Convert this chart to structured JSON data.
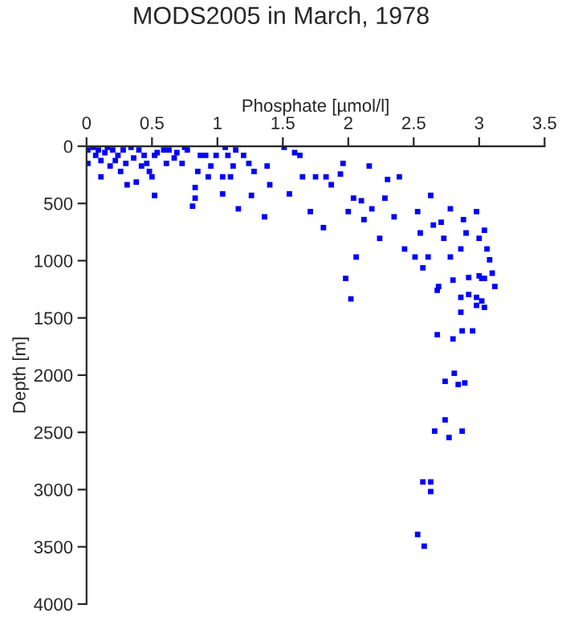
{
  "chart_data": {
    "type": "scatter",
    "title": "MODS2005 in March, 1978",
    "xlabel": "Phosphate [µmol/l]",
    "ylabel": "Depth [m]",
    "xlim": [
      0,
      3.5
    ],
    "xticks": [
      0,
      0.5,
      1,
      1.5,
      2,
      2.5,
      3,
      3.5
    ],
    "ylim": [
      4000,
      0
    ],
    "yticks": [
      0,
      500,
      1000,
      1500,
      2000,
      2500,
      3000,
      3500,
      4000
    ],
    "marker": "square",
    "grid": false,
    "legend": false,
    "series": [
      {
        "color": "#0000ff",
        "x": [
          0.01,
          0.01,
          0.05,
          0.07,
          0.09,
          0.11,
          0.11,
          0.14,
          0.16,
          0.18,
          0.2,
          0.22,
          0.24,
          0.26,
          0.28,
          0.3,
          0.31,
          0.34,
          0.36,
          0.38,
          0.4,
          0.42,
          0.44,
          0.46,
          0.48,
          0.5,
          0.52,
          0.54,
          0.52,
          0.59,
          0.61,
          0.63,
          0.67,
          0.69,
          0.73,
          0.75,
          0.77,
          0.81,
          0.83,
          0.83,
          0.85,
          0.87,
          0.91,
          0.93,
          0.95,
          0.99,
          1.04,
          1.04,
          1.06,
          1.08,
          1.1,
          1.12,
          1.14,
          1.16,
          1.2,
          1.24,
          1.26,
          1.28,
          1.36,
          1.38,
          1.4,
          1.51,
          1.55,
          1.59,
          1.63,
          1.65,
          1.71,
          1.75,
          1.81,
          1.83,
          1.87,
          1.94,
          1.96,
          1.98,
          2.0,
          2.04,
          2.06,
          2.1,
          2.12,
          2.16,
          2.18,
          2.24,
          2.28,
          2.3,
          2.35,
          2.39,
          2.43,
          2.51,
          2.53,
          2.55,
          2.57,
          2.61,
          2.63,
          2.65,
          2.69,
          2.71,
          2.73,
          2.78,
          2.78,
          2.86,
          2.88,
          2.9,
          2.98,
          3.0,
          3.02,
          3.04,
          3.06,
          3.08,
          3.1,
          3.12,
          2.02,
          2.68,
          2.68,
          2.8,
          2.8,
          2.86,
          2.86,
          2.87,
          2.92,
          2.92,
          2.95,
          2.98,
          2.98,
          3.0,
          3.02,
          3.04,
          3.04,
          2.81,
          2.74,
          2.84,
          2.89,
          2.74,
          2.66,
          2.77,
          2.87,
          2.57,
          2.63,
          2.63,
          2.53,
          2.58
        ],
        "values": [
          33,
          150,
          9,
          80,
          33,
          126,
          267,
          56,
          9,
          173,
          33,
          126,
          80,
          220,
          33,
          150,
          337,
          9,
          103,
          313,
          33,
          173,
          80,
          150,
          220,
          267,
          430,
          56,
          80,
          33,
          150,
          33,
          103,
          56,
          150,
          9,
          33,
          524,
          454,
          360,
          220,
          80,
          80,
          267,
          173,
          80,
          267,
          416,
          9,
          80,
          267,
          173,
          33,
          547,
          80,
          150,
          430,
          220,
          617,
          173,
          337,
          9,
          416,
          56,
          80,
          267,
          571,
          267,
          711,
          267,
          337,
          243,
          150,
          1155,
          571,
          454,
          968,
          477,
          641,
          173,
          547,
          805,
          454,
          290,
          617,
          267,
          898,
          968,
          571,
          758,
          1062,
          968,
          430,
          688,
          1226,
          664,
          805,
          547,
          968,
          898,
          641,
          758,
          571,
          805,
          1155,
          734,
          898,
          992,
          1109,
          1226,
          1334,
          1259,
          1647,
          1170,
          1684,
          1320,
          1450,
          1614,
          1296,
          1146,
          1614,
          1320,
          1390,
          1132,
          1352,
          1156,
          1408,
          1984,
          2054,
          2082,
          2068,
          2391,
          2489,
          2545,
          2489,
          2933,
          2933,
          3018,
          3392,
          3495
        ]
      }
    ]
  }
}
